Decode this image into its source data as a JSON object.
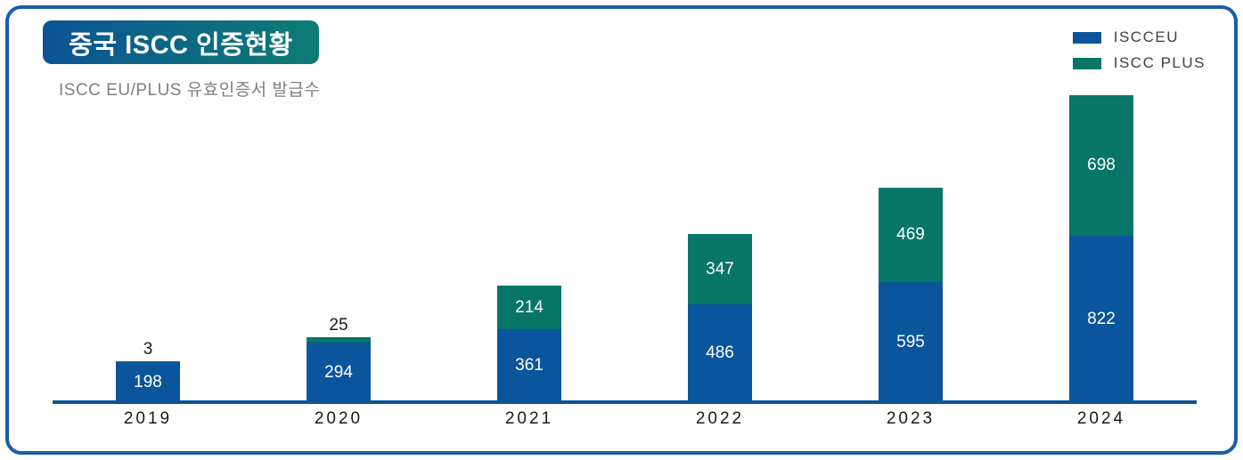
{
  "header": {
    "title": "중국 ISCC 인증현황",
    "subtitle": "ISCC EU/PLUS 유효인증서 발급수"
  },
  "legend": {
    "items": [
      {
        "label": "ISCCEU",
        "color": "#0A559C"
      },
      {
        "label": "ISCC PLUS",
        "color": "#077568"
      }
    ]
  },
  "chart_data": {
    "type": "bar",
    "stacked": true,
    "title": "중국 ISCC 인증현황",
    "subtitle": "ISCC EU/PLUS 유효인증서 발급수",
    "categories": [
      "2019",
      "2020",
      "2021",
      "2022",
      "2023",
      "2024"
    ],
    "series": [
      {
        "name": "ISCCEU",
        "color": "#0A559C",
        "values": [
          198,
          294,
          361,
          486,
          595,
          822
        ]
      },
      {
        "name": "ISCC PLUS",
        "color": "#077568",
        "values": [
          3,
          25,
          214,
          347,
          469,
          698
        ]
      }
    ],
    "totals": [
      201,
      319,
      575,
      833,
      1064,
      1520
    ],
    "ylim": [
      0,
      1520
    ],
    "grid": false,
    "legend_position": "top-right",
    "value_labels": true,
    "xlabel": "",
    "ylabel": ""
  },
  "colors": {
    "frame_border": "#1A5DA8",
    "axis": "#0B5394",
    "title_gradient_start": "#0B5394",
    "title_gradient_end": "#0E7C74",
    "bar_blue": "#0A559C",
    "bar_teal": "#077568",
    "label_inside": "#FFFFFF",
    "label_outside": "#1A1A1A",
    "subtitle_text": "#7F7F7F"
  }
}
